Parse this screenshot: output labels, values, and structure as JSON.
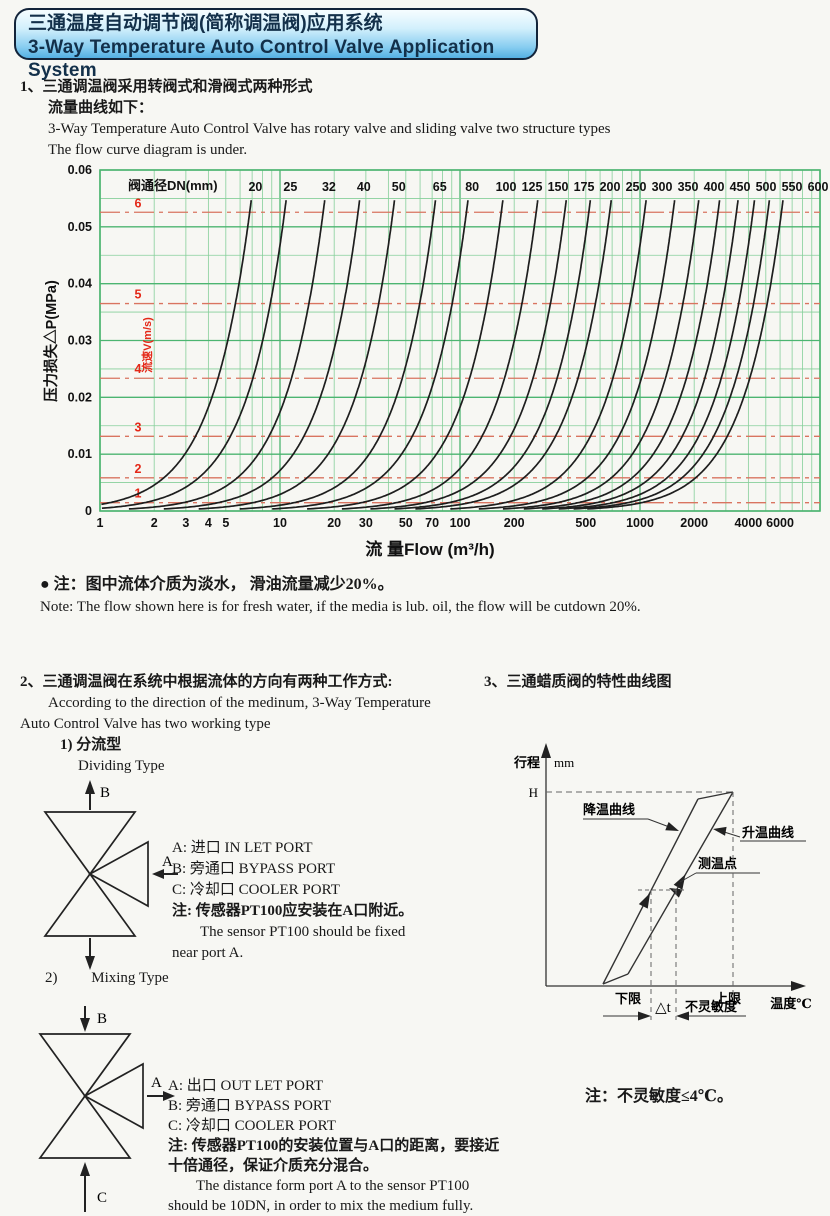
{
  "header": {
    "title_zh": "三通温度自动调节阀(简称调温阀)应用系统",
    "title_en": "3-Way Temperature Auto Control Valve Application System"
  },
  "section1": {
    "line1": "1、三通调温阀采用转阀式和滑阀式两种形式",
    "line2": "流量曲线如下：",
    "line3": "3-Way Temperature Auto Control Valve has rotary valve and sliding valve two structure types",
    "line4": "The flow curve diagram is under."
  },
  "chart_note": {
    "zh": "● 注：图中流体介质为淡水， 滑油流量减少20%。",
    "en": "Note: The flow shown here is for fresh water, if the media is lub. oil, the flow will be cutdown 20%."
  },
  "chart_data": {
    "type": "line",
    "title_row": "阀通径DN(mm)",
    "xlabel": "流 量Flow (m³/h)",
    "ylabel": "压力损失△P(MPa)",
    "x_scale": "log",
    "xlim": [
      1,
      10000
    ],
    "ylim": [
      0,
      0.06
    ],
    "y_ticks": [
      0,
      0.01,
      0.02,
      0.03,
      0.04,
      0.05,
      0.06
    ],
    "x_ticks": [
      1,
      2,
      3,
      4,
      5,
      10,
      20,
      30,
      50,
      70,
      100,
      200,
      500,
      1000,
      2000,
      4000,
      6000
    ],
    "dn_series_mm": [
      20,
      25,
      32,
      40,
      50,
      65,
      80,
      100,
      125,
      150,
      175,
      200,
      250,
      300,
      350,
      400,
      450,
      500,
      550,
      600
    ],
    "velocity_lines": {
      "label": "流速V(m/s)",
      "values": [
        1,
        2,
        3,
        4,
        5,
        6
      ],
      "dp_values": [
        0.00146,
        0.00584,
        0.01314,
        0.02336,
        0.0365,
        0.05256
      ]
    },
    "model": "Q[m3/h] = kq·DN²·v ; ΔP[MPa] = kdp·v² ; curves drawn up to ΔP = 0.055",
    "kq": 0.002827,
    "kdp": 0.00146,
    "curve_top_dp": 0.055,
    "grid": "on",
    "legend_position": "top-row-DN-labels"
  },
  "colors": {
    "page_bg": "#f7f7f3",
    "grid": "#86cf9a",
    "grid_major": "#4cb571",
    "curve": "#1e1e1e",
    "velocity_line": "#d97460",
    "velocity_text": "#e42818",
    "axis_text": "#111111"
  },
  "section2": {
    "heading_zh": "2、三通调温阀在系统中根据流体的方向有两种工作方式:",
    "heading_en1": "According to the direction of the medinum, 3-Way Temperature",
    "heading_en2": "Auto Control Valve has two working type",
    "type1_zh": "1) 分流型",
    "type1_en": "Dividing Type",
    "type2_num": "2)",
    "type2_en": "Mixing Type",
    "valve1": {
      "port_a": "A",
      "port_b": "B",
      "legend": [
        "A: 进口 IN LET PORT",
        "B: 旁通口 BYPASS PORT",
        "C: 冷却口 COOLER PORT",
        "注: 传感器PT100应安装在A口附近。",
        "The sensor PT100 should be fixed",
        "near port A."
      ]
    },
    "valve2": {
      "port_a": "A",
      "port_b": "B",
      "port_c": "C",
      "legend": [
        "A: 出口 OUT LET PORT",
        "B: 旁通口 BYPASS PORT",
        "C: 冷却口 COOLER PORT",
        "注: 传感器PT100的安装位置与A口的距离，要接近",
        "十倍通径，保证介质充分混合。",
        "The distance form port A to the sensor PT100",
        "should be 10DN, in order to mix the medium fully."
      ]
    }
  },
  "section3": {
    "heading_zh": "3、三通蜡质阀的特性曲线图",
    "diagram": {
      "y_axis_label": "行程",
      "y_unit": "mm",
      "h_label": "H",
      "cooling_label": "降温曲线",
      "heating_label": "升温曲线",
      "measure_label": "测温点",
      "lower_limit": "下限",
      "upper_limit": "上限",
      "x_axis_label": "温度℃",
      "delta_t": "△t",
      "insensitivity": "不灵敏度"
    },
    "note": "注：不灵敏度≤4℃。"
  }
}
